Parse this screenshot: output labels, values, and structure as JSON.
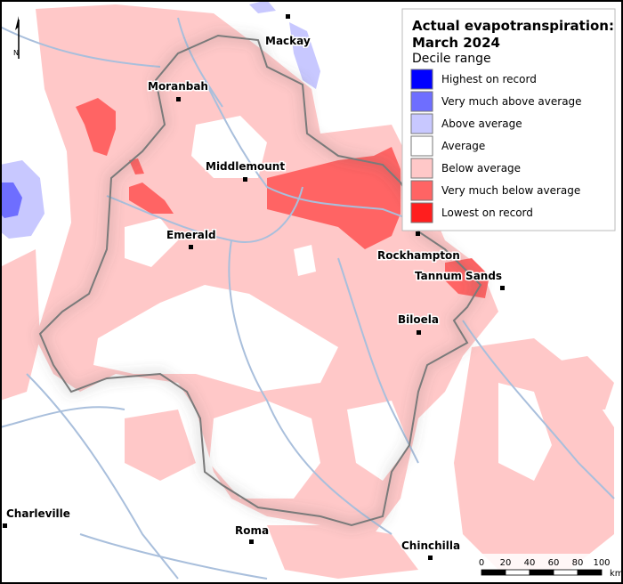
{
  "map": {
    "title_lines": [
      "Actual evapotranspiration:",
      "March 2024"
    ],
    "legend": {
      "title": "Decile range",
      "items": [
        {
          "label": "Highest on record",
          "color": "#0000ff"
        },
        {
          "label": "Very much above average",
          "color": "#6e6eff"
        },
        {
          "label": "Above average",
          "color": "#c8c8ff"
        },
        {
          "label": "Average",
          "color": "#ffffff"
        },
        {
          "label": "Below average",
          "color": "#ffc8c8"
        },
        {
          "label": "Very much below average",
          "color": "#ff6464"
        },
        {
          "label": "Lowest on record",
          "color": "#ff1e1e"
        }
      ]
    },
    "places": [
      "Mackay",
      "Moranbah",
      "Middlemount",
      "Emerald",
      "Rockhampton",
      "Tannum Sands",
      "Biloela",
      "Charleville",
      "Roma",
      "Chinchilla"
    ],
    "scale_bar": {
      "ticks": [
        0,
        20,
        40,
        60,
        80,
        100
      ],
      "unit": "km"
    },
    "north_label": "N"
  }
}
